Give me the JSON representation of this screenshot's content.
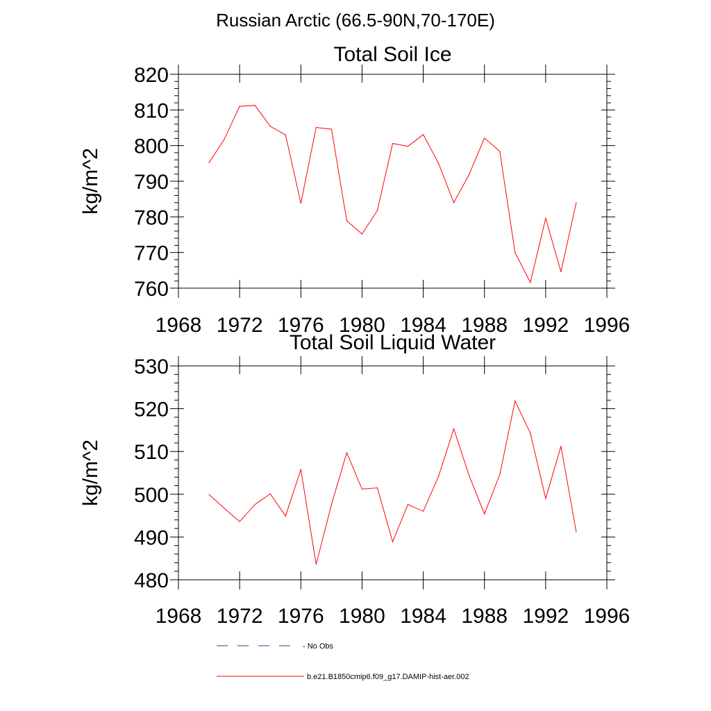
{
  "page": {
    "title": "Russian Arctic (66.5-90N,70-170E)"
  },
  "legend": [
    {
      "label": "No Obs",
      "color": "#3b3b8f",
      "dash": true
    },
    {
      "label": "b.e21.B1850cmip6.f09_g17.DAMIP-hist-aer.002",
      "color": "#ff0000",
      "dash": false
    }
  ],
  "chart_data": [
    {
      "type": "line",
      "title": "Total Soil Ice",
      "ylabel": "kg/m^2",
      "xlabel": "",
      "xlim": [
        1968,
        1996
      ],
      "ylim": [
        760,
        820
      ],
      "x_ticks": [
        1968,
        1972,
        1976,
        1980,
        1984,
        1988,
        1992,
        1996
      ],
      "y_ticks": [
        760,
        770,
        780,
        790,
        800,
        810,
        820
      ],
      "series": [
        {
          "color": "#ff0000",
          "x": [
            1970,
            1971,
            1972,
            1973,
            1974,
            1975,
            1976,
            1977,
            1978,
            1979,
            1980,
            1981,
            1982,
            1983,
            1984,
            1985,
            1986,
            1987,
            1988,
            1989,
            1990,
            1991,
            1992,
            1993,
            1994
          ],
          "values": [
            795.2,
            801.8,
            811.0,
            811.3,
            805.4,
            803.0,
            783.8,
            805.1,
            804.6,
            778.9,
            775.2,
            781.8,
            800.6,
            799.8,
            803.1,
            795.0,
            784.0,
            791.9,
            802.1,
            798.4,
            770.0,
            761.6,
            779.6,
            764.6,
            784.0
          ]
        }
      ]
    },
    {
      "type": "line",
      "title": "Total Soil Liquid Water",
      "ylabel": "kg/m^2",
      "xlabel": "",
      "xlim": [
        1968,
        1996
      ],
      "ylim": [
        480,
        530
      ],
      "x_ticks": [
        1968,
        1972,
        1976,
        1980,
        1984,
        1988,
        1992,
        1996
      ],
      "y_ticks": [
        480,
        490,
        500,
        510,
        520,
        530
      ],
      "series": [
        {
          "color": "#ff0000",
          "x": [
            1970,
            1971,
            1972,
            1973,
            1974,
            1975,
            1976,
            1977,
            1978,
            1979,
            1980,
            1981,
            1982,
            1983,
            1984,
            1985,
            1986,
            1987,
            1988,
            1989,
            1990,
            1991,
            1992,
            1993,
            1994
          ],
          "values": [
            499.9,
            496.7,
            493.6,
            497.6,
            500.1,
            494.9,
            505.8,
            483.6,
            497.6,
            509.7,
            501.2,
            501.5,
            488.9,
            497.6,
            496.0,
            504.2,
            515.3,
            504.3,
            495.4,
            504.6,
            521.8,
            514.3,
            499.0,
            511.2,
            491.2
          ]
        }
      ]
    }
  ]
}
